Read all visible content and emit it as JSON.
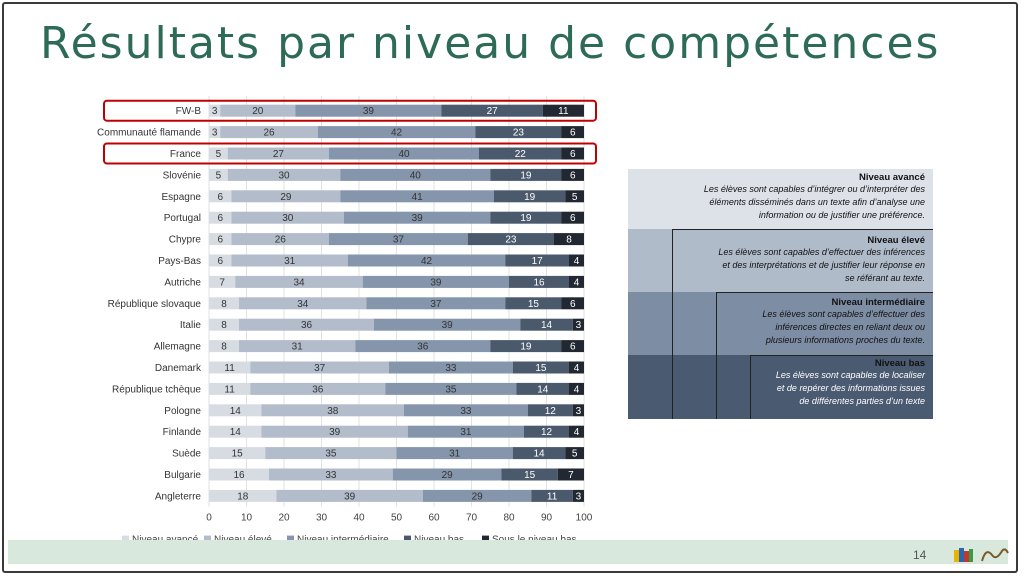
{
  "slide": {
    "title": "Résultats par niveau de compétences",
    "page_number": "14"
  },
  "colors": {
    "title": "#2e6b57",
    "footer": "#d9e8dd",
    "highlight": "#c00000",
    "series": [
      "#d7dce3",
      "#b2bccb",
      "#8595ab",
      "#4b596d",
      "#222831"
    ]
  },
  "chart_data": {
    "type": "bar",
    "orientation": "horizontal",
    "stacked": true,
    "categories": [
      "FW-B",
      "Communauté flamande",
      "France",
      "Slovénie",
      "Espagne",
      "Portugal",
      "Chypre",
      "Pays-Bas",
      "Autriche",
      "République slovaque",
      "Italie",
      "Allemagne",
      "Danemark",
      "République tchèque",
      "Pologne",
      "Finlande",
      "Suède",
      "Bulgarie",
      "Angleterre"
    ],
    "highlighted": [
      "FW-B",
      "France"
    ],
    "series": [
      {
        "name": "Niveau avancé",
        "values": [
          3,
          3,
          5,
          5,
          6,
          6,
          6,
          6,
          7,
          8,
          8,
          8,
          11,
          11,
          14,
          14,
          15,
          16,
          18
        ]
      },
      {
        "name": "Niveau élevé",
        "values": [
          20,
          26,
          27,
          30,
          29,
          30,
          26,
          31,
          34,
          34,
          36,
          31,
          37,
          36,
          38,
          39,
          35,
          33,
          39
        ]
      },
      {
        "name": "Niveau intermédiaire",
        "values": [
          39,
          42,
          40,
          40,
          41,
          39,
          37,
          42,
          39,
          37,
          39,
          36,
          33,
          35,
          33,
          31,
          31,
          29,
          29
        ]
      },
      {
        "name": "Niveau bas",
        "values": [
          27,
          23,
          22,
          19,
          19,
          19,
          23,
          17,
          16,
          15,
          14,
          19,
          15,
          14,
          12,
          12,
          14,
          15,
          11
        ]
      },
      {
        "name": "Sous le niveau bas",
        "values": [
          11,
          6,
          6,
          6,
          5,
          6,
          8,
          4,
          4,
          6,
          3,
          6,
          4,
          4,
          3,
          4,
          5,
          7,
          3
        ]
      }
    ],
    "xlim": [
      0,
      100
    ],
    "xticks": [
      "0",
      "10",
      "20",
      "30",
      "40",
      "50",
      "60",
      "70",
      "80",
      "90",
      "100"
    ],
    "grid": true,
    "legend_position": "bottom"
  },
  "legend_panel": {
    "levels": [
      {
        "heading": "Niveau avancé",
        "text": [
          "Les élèves sont capables d’intégrer ou d’interpréter des",
          "éléments disséminés dans un texte afin d’analyse une",
          "information ou de justifier une préférence."
        ]
      },
      {
        "heading": "Niveau élevé",
        "text": [
          "Les élèves sont capables d’effectuer des inférences",
          "et des interprétations et de justifier leur réponse en",
          "se référant au texte."
        ]
      },
      {
        "heading": "Niveau intermédiaire",
        "text": [
          "Les élèves sont capables d’effectuer des",
          "inférences directes en reliant deux ou",
          "plusieurs informations proches du texte."
        ]
      },
      {
        "heading": "Niveau bas",
        "text": [
          "Les élèves sont capables de localiser",
          "et de repérer des informations issues",
          "de différentes parties d’un texte"
        ]
      }
    ]
  }
}
